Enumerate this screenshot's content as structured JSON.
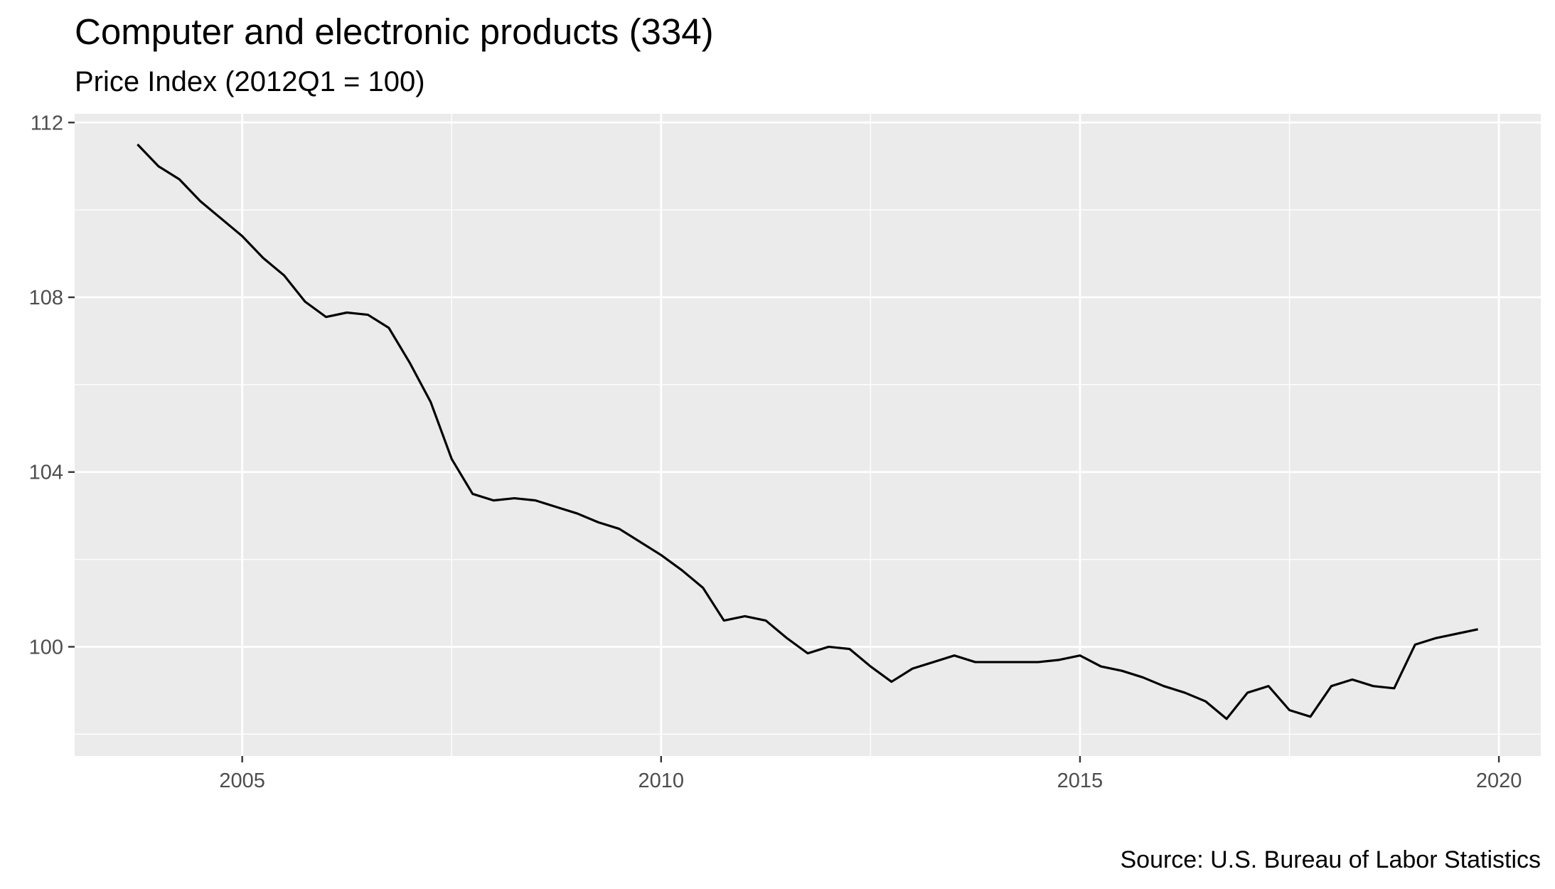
{
  "chart_data": {
    "type": "line",
    "title": "Computer and electronic products (334)",
    "subtitle": "Price Index (2012Q1 = 100)",
    "caption": "Source: U.S. Bureau of Labor Statistics",
    "xlabel": "",
    "ylabel": "",
    "xlim": [
      2003.0,
      2020.5
    ],
    "ylim": [
      97.5,
      112.2
    ],
    "x_ticks": [
      2005,
      2010,
      2015,
      2020
    ],
    "y_ticks": [
      100,
      104,
      108,
      112
    ],
    "grid": true,
    "legend": "none",
    "colors": {
      "panel": "#ebebeb",
      "grid": "#ffffff",
      "line": "#000000",
      "tick_text": "#4d4d4d"
    },
    "series": [
      {
        "x": [
          2003.75,
          2004.0,
          2004.25,
          2004.5,
          2004.75,
          2005.0,
          2005.25,
          2005.5,
          2005.75,
          2006.0,
          2006.25,
          2006.5,
          2006.75,
          2007.0,
          2007.25,
          2007.5,
          2007.75,
          2008.0,
          2008.25,
          2008.5,
          2008.75,
          2009.0,
          2009.25,
          2009.5,
          2009.75,
          2010.0,
          2010.25,
          2010.5,
          2010.75,
          2011.0,
          2011.25,
          2011.5,
          2011.75,
          2012.0,
          2012.25,
          2012.5,
          2012.75,
          2013.0,
          2013.25,
          2013.5,
          2013.75,
          2014.0,
          2014.25,
          2014.5,
          2014.75,
          2015.0,
          2015.25,
          2015.5,
          2015.75,
          2016.0,
          2016.25,
          2016.5,
          2016.75,
          2017.0,
          2017.25,
          2017.5,
          2017.75,
          2018.0,
          2018.25,
          2018.5,
          2018.75,
          2019.0,
          2019.25,
          2019.5,
          2019.75
        ],
        "y": [
          111.5,
          111.0,
          110.7,
          110.2,
          109.8,
          109.4,
          108.9,
          108.5,
          107.9,
          107.55,
          107.65,
          107.6,
          107.3,
          106.5,
          105.6,
          104.3,
          103.5,
          103.35,
          103.4,
          103.35,
          103.2,
          103.05,
          102.85,
          102.7,
          102.4,
          102.1,
          101.75,
          101.35,
          100.6,
          100.7,
          100.6,
          100.2,
          99.85,
          100.0,
          99.95,
          99.55,
          99.2,
          99.5,
          99.65,
          99.8,
          99.65,
          99.65,
          99.65,
          99.65,
          99.7,
          99.8,
          99.55,
          99.45,
          99.3,
          99.1,
          98.95,
          98.75,
          98.35,
          98.95,
          99.1,
          98.55,
          98.4,
          99.1,
          99.25,
          99.1,
          99.05,
          100.05,
          100.2,
          100.3,
          100.4
        ]
      }
    ]
  }
}
